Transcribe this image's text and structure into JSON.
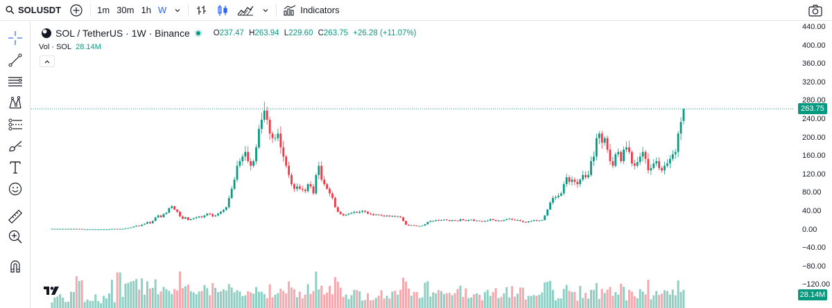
{
  "toolbar": {
    "symbol": "SOLUSDT",
    "intervals": [
      "1m",
      "30m",
      "1h",
      "W"
    ],
    "active_interval": "W",
    "indicators_label": "Indicators"
  },
  "legend": {
    "title": "SOL / TetherUS · 1W · Binance",
    "open_label": "O",
    "open": "237.47",
    "high_label": "H",
    "high": "263.94",
    "low_label": "L",
    "low": "229.60",
    "close_label": "C",
    "close": "263.75",
    "change": "+26.28 (+11.07%)"
  },
  "volume_legend": {
    "label": "Vol · SOL",
    "value": "28.14M"
  },
  "price_axis": {
    "ticks": [
      "440.00",
      "400.00",
      "360.00",
      "320.00",
      "280.00",
      "240.00",
      "200.00",
      "160.00",
      "120.00",
      "80.00",
      "40.00",
      "0.00",
      "−40.00",
      "−80.00",
      "−120.00"
    ],
    "last_price": "263.75",
    "last_volume": "28.14M"
  },
  "colors": {
    "up": "#089981",
    "down": "#f23645",
    "up_vol": "#8fcfc3",
    "down_vol": "#f5a8ae",
    "accent": "#2962ff"
  },
  "left_tools": [
    "crosshair-icon",
    "trend-line-icon",
    "fib-icon",
    "pattern-icon",
    "forecast-icon",
    "brush-icon",
    "text-icon",
    "emoji-icon",
    "ruler-icon",
    "zoom-in-icon",
    "magnet-icon"
  ],
  "chart_data": {
    "type": "candlestick",
    "symbol": "SOLUSDT",
    "interval": "1W",
    "y_range": [
      -160,
      440
    ],
    "closes": [
      3,
      3,
      3,
      3,
      3,
      3,
      3,
      3,
      3,
      2,
      3,
      2,
      2,
      2,
      2,
      2,
      2,
      2,
      2,
      2,
      2,
      2,
      3,
      3,
      2,
      3,
      3,
      4,
      5,
      6,
      8,
      10,
      9,
      12,
      14,
      18,
      15,
      20,
      28,
      32,
      28,
      35,
      38,
      48,
      52,
      45,
      40,
      30,
      25,
      28,
      22,
      24,
      26,
      28,
      30,
      28,
      32,
      36,
      35,
      30,
      32,
      36,
      40,
      44,
      50,
      70,
      90,
      110,
      140,
      150,
      160,
      170,
      150,
      140,
      150,
      180,
      220,
      240,
      260,
      240,
      210,
      200,
      200,
      210,
      180,
      160,
      140,
      120,
      100,
      90,
      95,
      90,
      88,
      85,
      100,
      95,
      80,
      120,
      140,
      110,
      100,
      90,
      80,
      70,
      50,
      40,
      35,
      32,
      34,
      36,
      38,
      40,
      38,
      40,
      42,
      40,
      36,
      35,
      33,
      34,
      33,
      32,
      30,
      32,
      30,
      31,
      30,
      30,
      28,
      20,
      12,
      10,
      11,
      10,
      9,
      9,
      10,
      13,
      18,
      20,
      20,
      22,
      21,
      22,
      23,
      22,
      20,
      22,
      21,
      20,
      24,
      22,
      20,
      22,
      23,
      20,
      21,
      20,
      19,
      20,
      21,
      24,
      22,
      20,
      21,
      20,
      22,
      24,
      25,
      23,
      22,
      22,
      20,
      18,
      17,
      19,
      20,
      22,
      20,
      21,
      22,
      32,
      45,
      60,
      70,
      72,
      75,
      80,
      100,
      115,
      105,
      110,
      105,
      100,
      110,
      120,
      115,
      120,
      150,
      160,
      200,
      210,
      190,
      200,
      175,
      150,
      140,
      165,
      170,
      150,
      175,
      180,
      170,
      145,
      140,
      148,
      160,
      170,
      155,
      130,
      135,
      145,
      150,
      135,
      130,
      140,
      145,
      155,
      165,
      170,
      210,
      235,
      263.75
    ],
    "last": {
      "open": 237.47,
      "high": 263.94,
      "low": 229.6,
      "close": 263.75
    }
  }
}
